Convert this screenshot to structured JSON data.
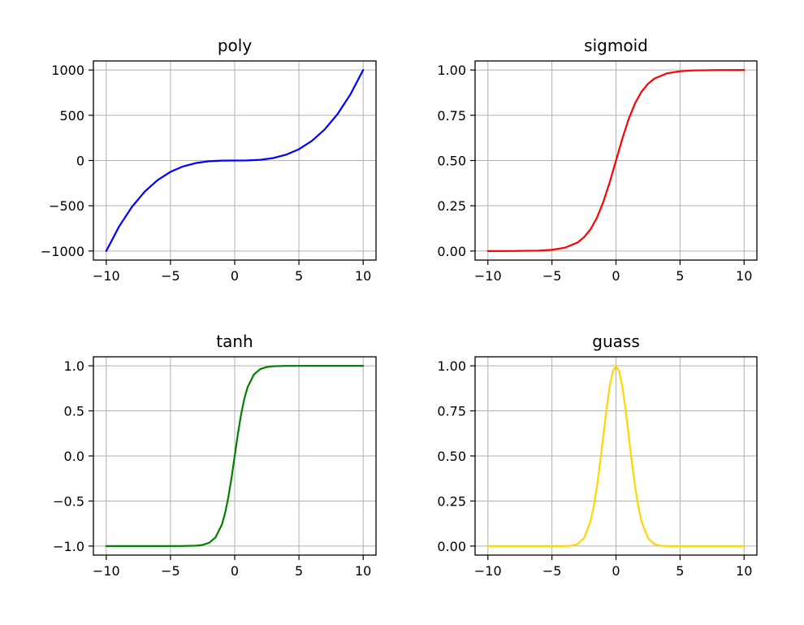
{
  "chart_data": [
    {
      "type": "line",
      "title": "poly",
      "xlim": [
        -11,
        11
      ],
      "ylim": [
        -1100,
        1100
      ],
      "xticks": [
        -10,
        -5,
        0,
        5,
        10
      ],
      "xtick_labels": [
        "−10",
        "−5",
        "0",
        "5",
        "10"
      ],
      "yticks": [
        -1000,
        -500,
        0,
        500,
        1000
      ],
      "ytick_labels": [
        "−1000",
        "−500",
        "0",
        "500",
        "1000"
      ],
      "grid": true,
      "series": [
        {
          "color": "#0000ff",
          "x": [
            -10,
            -9,
            -8,
            -7,
            -6,
            -5,
            -4,
            -3,
            -2,
            -1,
            0,
            1,
            2,
            3,
            4,
            5,
            6,
            7,
            8,
            9,
            10
          ],
          "y": [
            -1000,
            -729,
            -512,
            -343,
            -216,
            -125,
            -64,
            -27,
            -8,
            -1,
            0,
            1,
            8,
            27,
            64,
            125,
            216,
            343,
            512,
            729,
            1000
          ]
        }
      ]
    },
    {
      "type": "line",
      "title": "sigmoid",
      "xlim": [
        -11,
        11
      ],
      "ylim": [
        -0.05,
        1.05
      ],
      "xticks": [
        -10,
        -5,
        0,
        5,
        10
      ],
      "xtick_labels": [
        "−10",
        "−5",
        "0",
        "5",
        "10"
      ],
      "yticks": [
        0,
        0.25,
        0.5,
        0.75,
        1
      ],
      "ytick_labels": [
        "0.00",
        "0.25",
        "0.50",
        "0.75",
        "1.00"
      ],
      "grid": true,
      "series": [
        {
          "color": "#ff0000",
          "x": [
            -10,
            -8,
            -6,
            -5,
            -4,
            -3,
            -2.5,
            -2,
            -1.5,
            -1,
            -0.5,
            0,
            0.5,
            1,
            1.5,
            2,
            2.5,
            3,
            4,
            5,
            6,
            8,
            10
          ],
          "y": [
            5e-05,
            0.0003,
            0.0025,
            0.0067,
            0.018,
            0.047,
            0.076,
            0.119,
            0.182,
            0.269,
            0.378,
            0.5,
            0.622,
            0.731,
            0.818,
            0.881,
            0.924,
            0.953,
            0.982,
            0.993,
            0.9975,
            0.9997,
            0.99995
          ]
        }
      ]
    },
    {
      "type": "line",
      "title": "tanh",
      "xlim": [
        -11,
        11
      ],
      "ylim": [
        -1.1,
        1.1
      ],
      "xticks": [
        -10,
        -5,
        0,
        5,
        10
      ],
      "xtick_labels": [
        "−10",
        "−5",
        "0",
        "5",
        "10"
      ],
      "yticks": [
        -1,
        -0.5,
        0,
        0.5,
        1
      ],
      "ytick_labels": [
        "−1.0",
        "−0.5",
        "0.0",
        "0.5",
        "1.0"
      ],
      "grid": true,
      "series": [
        {
          "color": "#008000",
          "x": [
            -10,
            -6,
            -4,
            -3,
            -2.5,
            -2,
            -1.5,
            -1,
            -0.75,
            -0.5,
            -0.25,
            0,
            0.25,
            0.5,
            0.75,
            1,
            1.5,
            2,
            2.5,
            3,
            4,
            6,
            10
          ],
          "y": [
            -1,
            -1,
            -0.9993,
            -0.995,
            -0.987,
            -0.964,
            -0.905,
            -0.762,
            -0.635,
            -0.462,
            -0.245,
            0,
            0.245,
            0.462,
            0.635,
            0.762,
            0.905,
            0.964,
            0.987,
            0.995,
            0.9993,
            1,
            1
          ]
        }
      ]
    },
    {
      "type": "line",
      "title": "guass",
      "xlim": [
        -11,
        11
      ],
      "ylim": [
        -0.05,
        1.05
      ],
      "xticks": [
        -10,
        -5,
        0,
        5,
        10
      ],
      "xtick_labels": [
        "−10",
        "−5",
        "0",
        "5",
        "10"
      ],
      "yticks": [
        0,
        0.25,
        0.5,
        0.75,
        1
      ],
      "ytick_labels": [
        "0.00",
        "0.25",
        "0.50",
        "0.75",
        "1.00"
      ],
      "grid": true,
      "series": [
        {
          "color": "#ffd700",
          "x": [
            -10,
            -5,
            -4,
            -3.5,
            -3,
            -2.5,
            -2,
            -1.75,
            -1.5,
            -1.25,
            -1,
            -0.75,
            -0.5,
            -0.25,
            0,
            0.25,
            0.5,
            0.75,
            1,
            1.25,
            1.5,
            1.75,
            2,
            2.5,
            3,
            3.5,
            4,
            5,
            10
          ],
          "y": [
            0,
            0,
            0.0003,
            0.0022,
            0.0111,
            0.0439,
            0.1353,
            0.2163,
            0.3247,
            0.4578,
            0.6065,
            0.7548,
            0.8825,
            0.9692,
            1,
            0.9692,
            0.8825,
            0.7548,
            0.6065,
            0.4578,
            0.3247,
            0.2163,
            0.1353,
            0.0439,
            0.0111,
            0.0022,
            0.0003,
            0,
            0
          ]
        }
      ]
    }
  ]
}
